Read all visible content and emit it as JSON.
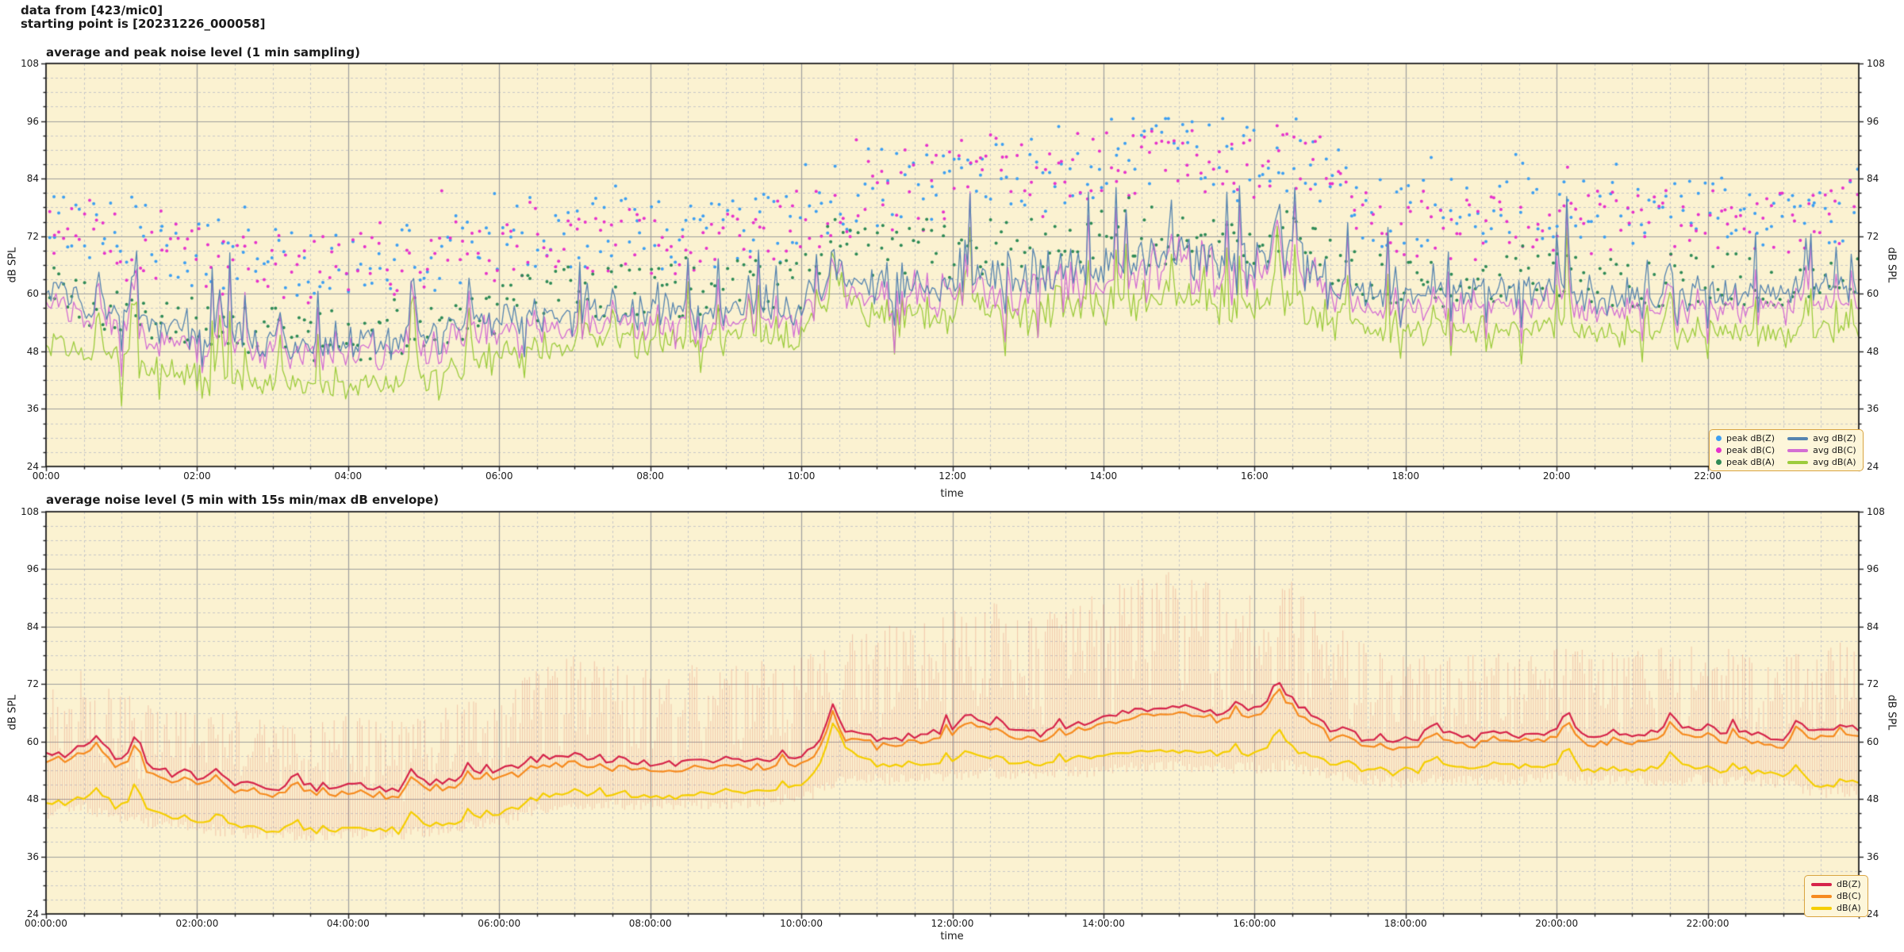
{
  "header": {
    "line1": "data from [423/mic0]",
    "line2": "starting point is [20231226_000058]"
  },
  "styles": {
    "plot_bg": "#fbf2d1",
    "grid_major": "#9e9e9e",
    "grid_minor": "#c8c8c8",
    "frame": "#1f1f1f",
    "text": "#1a1a1a",
    "legend_bg": "#fdf6da",
    "legend_border": "#d9a441"
  },
  "chart_data": [
    {
      "type": "line+scatter",
      "title": "average and peak noise level (1 min sampling)",
      "xlabel": "time",
      "ylabel_left": "dB SPL",
      "ylabel_right": "dB SPL",
      "xlim_hours": [
        0,
        24
      ],
      "ylim_dB": [
        24,
        108
      ],
      "x_major_tick_hours": [
        0,
        2,
        4,
        6,
        8,
        10,
        12,
        14,
        16,
        18,
        20,
        22
      ],
      "x_major_tick_labels": [
        "00:00",
        "02:00",
        "04:00",
        "06:00",
        "08:00",
        "10:00",
        "12:00",
        "14:00",
        "16:00",
        "18:00",
        "20:00",
        "22:00"
      ],
      "x_minor_tick_step_hours": 0.5,
      "y_major_ticks_dB": [
        24,
        36,
        48,
        60,
        72,
        84,
        96,
        108
      ],
      "y_minor_tick_step_dB": 3,
      "grid": true,
      "legend_position": "lower right",
      "legend": [
        {
          "label": "peak dB(Z)",
          "marker": "dot",
          "color": "#3d9ff2"
        },
        {
          "label": "peak dB(C)",
          "marker": "dot",
          "color": "#e632cc"
        },
        {
          "label": "peak dB(A)",
          "marker": "dot",
          "color": "#2f8b57"
        },
        {
          "label": "avg dB(Z)",
          "marker": "line",
          "color": "#5584b0"
        },
        {
          "label": "avg dB(C)",
          "marker": "line",
          "color": "#d36ed3"
        },
        {
          "label": "avg dB(A)",
          "marker": "line",
          "color": "#9ccc3c"
        }
      ],
      "sampling_note": "trend values read every 30 min from 00:00 to 24:00",
      "series": [
        {
          "name": "avg dB(Z)",
          "style": "line",
          "color": "#5584b0",
          "trend_dB_30min": [
            61,
            58,
            56,
            54,
            52,
            51,
            50,
            50,
            50,
            50,
            51,
            53,
            55,
            56,
            56,
            56,
            56,
            56,
            56,
            57,
            58,
            64,
            61,
            62,
            63,
            64,
            63,
            64,
            66,
            68,
            68,
            67,
            67,
            70,
            62,
            60,
            60,
            60,
            60,
            60,
            61,
            60,
            60,
            60,
            61,
            60,
            60,
            61,
            62
          ]
        },
        {
          "name": "avg dB(C)",
          "style": "line",
          "color": "#d36ed3",
          "trend_dB_30min": [
            58,
            55,
            53,
            51,
            50,
            49,
            48,
            48,
            48,
            48,
            49,
            51,
            52,
            53,
            53,
            53,
            53,
            53,
            53,
            54,
            55,
            62,
            58,
            59,
            60,
            61,
            60,
            61,
            63,
            65,
            65,
            64,
            64,
            67,
            59,
            57,
            57,
            57,
            57,
            57,
            58,
            57,
            57,
            57,
            58,
            57,
            57,
            58,
            59
          ]
        },
        {
          "name": "avg dB(A)",
          "style": "line",
          "color": "#9ccc3c",
          "trend_dB_30min": [
            50,
            48,
            46,
            44,
            43,
            42,
            41,
            41,
            41,
            41,
            42,
            44,
            47,
            49,
            50,
            50,
            50,
            50,
            51,
            51,
            52,
            61,
            55,
            56,
            56,
            57,
            56,
            57,
            58,
            59,
            59,
            58,
            58,
            60,
            55,
            53,
            52,
            52,
            52,
            52,
            53,
            52,
            52,
            52,
            53,
            52,
            51,
            52,
            53
          ]
        },
        {
          "name": "peak dB(Z)",
          "style": "scatter",
          "color": "#3d9ff2",
          "base": "avg dB(Z)",
          "offset_range_dB": [
            9,
            26
          ],
          "max_dB": 96.5
        },
        {
          "name": "peak dB(C)",
          "style": "scatter",
          "color": "#e632cc",
          "base": "avg dB(C)",
          "offset_range_dB": [
            10,
            27
          ],
          "max_dB": 95
        },
        {
          "name": "peak dB(A)",
          "style": "scatter",
          "color": "#2f8b57",
          "base": "avg dB(A)",
          "offset_range_dB": [
            5,
            18
          ],
          "max_dB": 80
        }
      ],
      "spike_events_hour_dB": [
        [
          0.7,
          7
        ],
        [
          1.15,
          12
        ],
        [
          2.3,
          9
        ],
        [
          3.1,
          7
        ],
        [
          4.85,
          16
        ],
        [
          5.6,
          9
        ],
        [
          7.5,
          6
        ],
        [
          9.3,
          6
        ],
        [
          10.42,
          8
        ],
        [
          12.2,
          7
        ],
        [
          13.4,
          7
        ],
        [
          14.9,
          6
        ],
        [
          16.3,
          9
        ],
        [
          18.4,
          6
        ],
        [
          20.15,
          7
        ],
        [
          21.5,
          6
        ],
        [
          23.3,
          6
        ]
      ]
    },
    {
      "type": "line+envelope",
      "title": "average noise level (5 min with 15s min/max dB envelope)",
      "xlabel": "time",
      "ylabel_left": "dB SPL",
      "ylabel_right": "dB SPL",
      "xlim_hours": [
        0,
        24
      ],
      "ylim_dB": [
        24,
        108
      ],
      "x_major_tick_hours": [
        0,
        2,
        4,
        6,
        8,
        10,
        12,
        14,
        16,
        18,
        20,
        22
      ],
      "x_major_tick_labels": [
        "00:00:00",
        "02:00:00",
        "04:00:00",
        "06:00:00",
        "08:00:00",
        "10:00:00",
        "12:00:00",
        "14:00:00",
        "16:00:00",
        "18:00:00",
        "20:00:00",
        "22:00:00"
      ],
      "x_minor_tick_step_hours": 0.5,
      "y_major_ticks_dB": [
        24,
        36,
        48,
        60,
        72,
        84,
        96,
        108
      ],
      "y_minor_tick_step_dB": 3,
      "grid": true,
      "legend_position": "lower right",
      "legend": [
        {
          "label": "dB(Z)",
          "marker": "line",
          "color": "#d6244a"
        },
        {
          "label": "dB(C)",
          "marker": "line",
          "color": "#f68b1f"
        },
        {
          "label": "dB(A)",
          "marker": "line",
          "color": "#f5ce00"
        }
      ],
      "sampling_note": "trend values read every 30 min from 00:00 to 24:00",
      "series": [
        {
          "name": "dB(Z)",
          "style": "line",
          "color": "#d6244a",
          "trend_dB_30min": [
            57,
            59,
            56,
            54,
            53,
            51,
            50.5,
            50,
            51,
            50,
            51.5,
            52,
            54,
            56,
            57,
            56,
            55.5,
            56,
            56,
            56.5,
            57,
            63,
            60,
            61,
            63,
            64,
            62,
            63,
            65,
            67,
            67.5,
            66,
            67,
            69,
            63,
            61,
            60.5,
            61,
            61.5,
            61,
            62,
            61,
            61.5,
            62,
            62.5,
            61.5,
            61,
            62,
            63
          ]
        },
        {
          "name": "dB(C)",
          "style": "line",
          "color": "#f68b1f",
          "trend_dB_30min": [
            55.5,
            57.5,
            54.5,
            52.5,
            51.5,
            49.5,
            49,
            48.5,
            49.5,
            48.5,
            50,
            50.5,
            52.5,
            54.5,
            55.5,
            54.5,
            54,
            54.5,
            54.5,
            55,
            55.5,
            61.5,
            58.5,
            59.5,
            61.5,
            62.5,
            60.5,
            61.5,
            63.5,
            65.5,
            66,
            64.5,
            65.5,
            67.5,
            61.5,
            59.5,
            59,
            59.5,
            60,
            59.5,
            60.5,
            59.5,
            60,
            60.5,
            61,
            60,
            59.5,
            60.5,
            61.5
          ]
        },
        {
          "name": "dB(A)",
          "style": "line",
          "color": "#f5ce00",
          "trend_dB_30min": [
            47,
            48,
            46,
            45,
            43.5,
            42,
            41.5,
            41,
            42,
            41.5,
            42.5,
            43,
            45,
            48,
            49.5,
            49,
            48.5,
            49,
            49.5,
            50,
            50.5,
            60,
            54.5,
            55,
            56,
            56.5,
            55.5,
            56,
            57,
            58,
            58,
            57.5,
            57.5,
            59,
            56,
            54.5,
            54,
            54.5,
            55,
            54.5,
            55,
            54,
            54,
            54.5,
            54.5,
            54,
            53.5,
            50,
            52
          ]
        }
      ],
      "envelope": {
        "label": "15s min/max dB envelope",
        "color": "#e06e5a",
        "opacity": 0.3,
        "max_trend_dB_30min": [
          72,
          75,
          70,
          68,
          66,
          68,
          64,
          65,
          66,
          64,
          66,
          68,
          72,
          76,
          78,
          76,
          75,
          76,
          76,
          77,
          78,
          82,
          84,
          85,
          88,
          90,
          86,
          88,
          92,
          95,
          96,
          93,
          92,
          94,
          85,
          80,
          78,
          78,
          79,
          78,
          80,
          79,
          79,
          80,
          80,
          79,
          78,
          80,
          82
        ],
        "min_trend_dB_30min": [
          45,
          46,
          44,
          43,
          42,
          41,
          40.5,
          40,
          41,
          40.5,
          41,
          42,
          43,
          46,
          47,
          47,
          46.5,
          47,
          47,
          47.5,
          48,
          52,
          52,
          52.5,
          53,
          53.5,
          53,
          53.5,
          54,
          55,
          55,
          54.5,
          54.5,
          55,
          53,
          52,
          51.5,
          52,
          52,
          52,
          52.5,
          52,
          52,
          52,
          52,
          52,
          51.5,
          49,
          50
        ]
      },
      "spike_events_hour_dB": [
        [
          0.7,
          3
        ],
        [
          1.15,
          4
        ],
        [
          2.3,
          3
        ],
        [
          4.85,
          4
        ],
        [
          5.6,
          3
        ],
        [
          10.42,
          6
        ],
        [
          12.2,
          3
        ],
        [
          16.3,
          4.5
        ],
        [
          18.4,
          2.5
        ],
        [
          20.15,
          5
        ],
        [
          21.5,
          3
        ],
        [
          23.2,
          3
        ]
      ]
    }
  ]
}
